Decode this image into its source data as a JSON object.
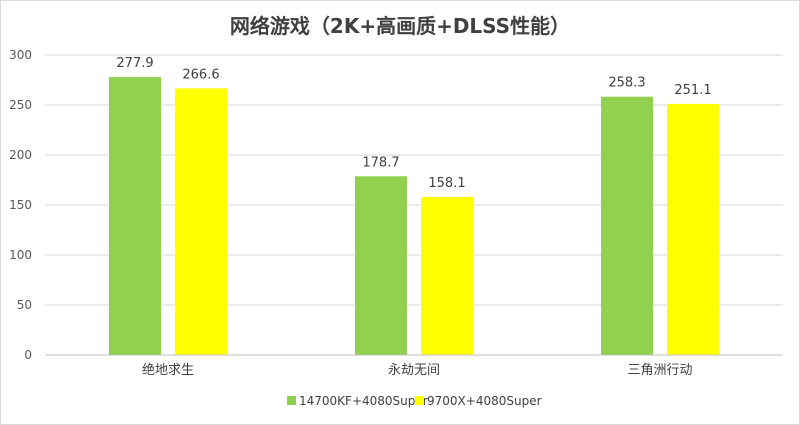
{
  "chart_data": {
    "type": "bar",
    "title": "网络游戏（2K+高画质+DLSS性能）",
    "categories": [
      "绝地求生",
      "永劫无间",
      "三角洲行动"
    ],
    "series": [
      {
        "name": "14700KF+4080Super",
        "color": "#92d050",
        "values": [
          277.9,
          178.7,
          258.3
        ]
      },
      {
        "name": "9700X+4080Super",
        "color": "#ffff00",
        "values": [
          266.6,
          158.1,
          251.1
        ]
      }
    ],
    "ylim": [
      0,
      300
    ],
    "yticks": [
      0,
      50,
      100,
      150,
      200,
      250,
      300
    ],
    "grid": true,
    "legend": "bottom",
    "data_labels": [
      "277.9",
      "266.6",
      "178.7",
      "158.1",
      "258.3",
      "251.1"
    ]
  }
}
